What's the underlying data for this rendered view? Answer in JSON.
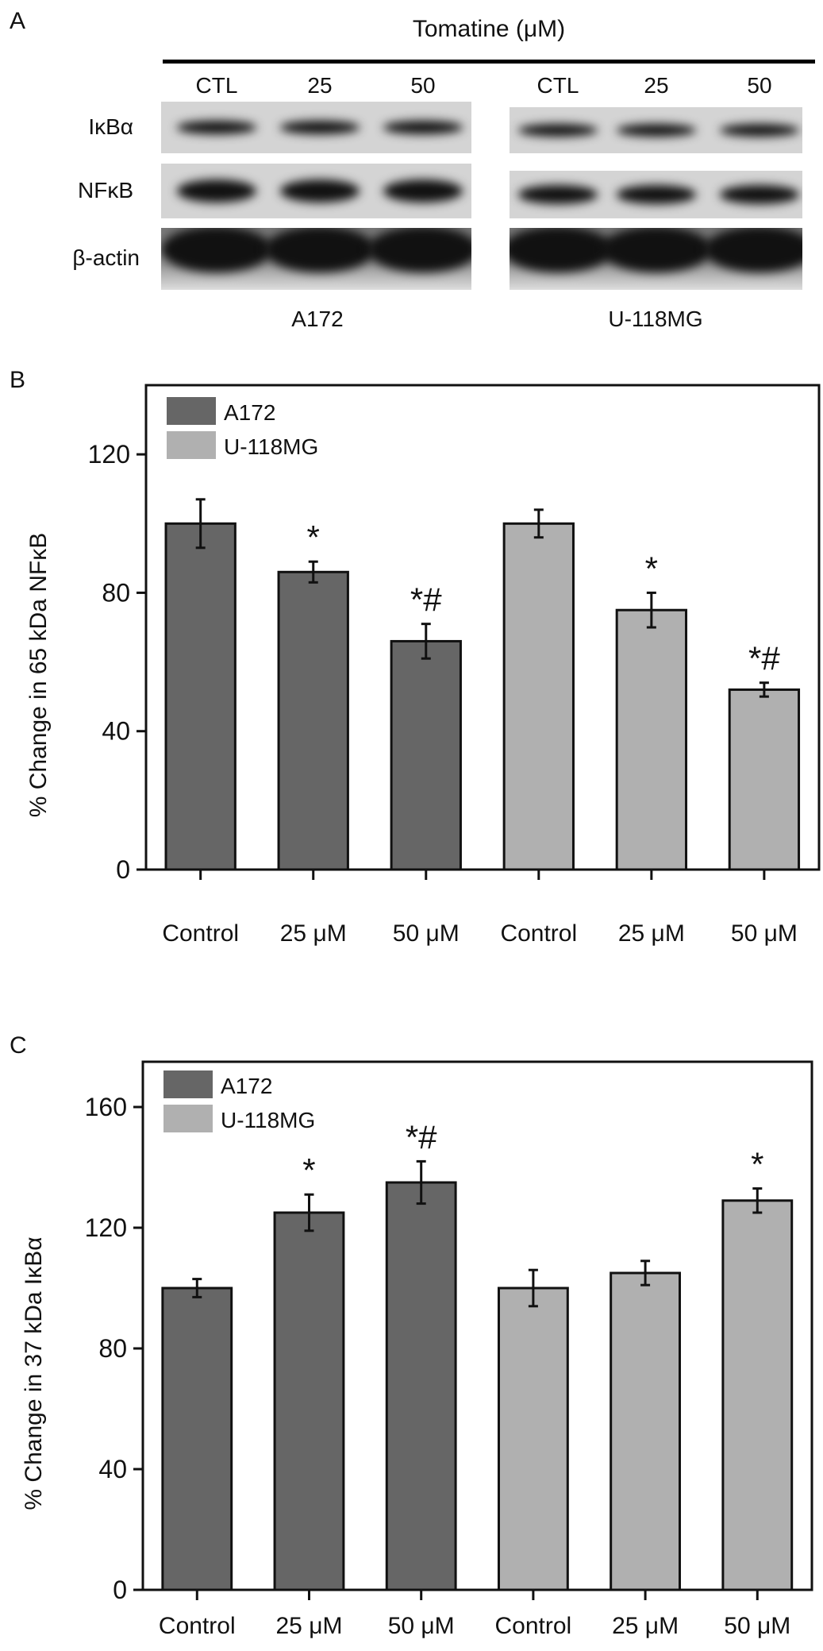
{
  "blot": {
    "panel_label": "A",
    "treatment_title": "Tomatine (μM)",
    "lanes_left": [
      "CTL",
      "25",
      "50"
    ],
    "lanes_right": [
      "CTL",
      "25",
      "50"
    ],
    "rows": [
      "IκBα",
      "NFκB",
      "β-actin"
    ],
    "cell_lines": [
      "A172",
      "U-118MG"
    ]
  },
  "chart_data": [
    {
      "panel_label": "B",
      "type": "bar",
      "title": "",
      "xlabel": "",
      "ylabel": "% Change in 65 kDa NFκB",
      "ylim": [
        0,
        140
      ],
      "yticks": [
        0,
        40,
        80,
        120
      ],
      "categories": [
        "Control",
        "25 μM",
        "50 μM",
        "Control",
        "25 μM",
        "50 μM"
      ],
      "series": [
        {
          "name": "A172",
          "color": "#666666",
          "values": [
            100,
            86,
            66,
            null,
            null,
            null
          ],
          "errors": [
            7,
            3,
            5,
            null,
            null,
            null
          ]
        },
        {
          "name": "U-118MG",
          "color": "#b0b0b0",
          "values": [
            null,
            null,
            null,
            100,
            75,
            52
          ],
          "errors": [
            null,
            null,
            null,
            4,
            5,
            2
          ]
        }
      ],
      "annotations": [
        "",
        "*",
        "*#",
        "",
        "*",
        "*#"
      ],
      "legend": "top-left",
      "grid": false
    },
    {
      "panel_label": "C",
      "type": "bar",
      "title": "",
      "xlabel": "",
      "ylabel": "% Change in 37 kDa IκBα",
      "ylim": [
        0,
        175
      ],
      "yticks": [
        0,
        40,
        80,
        120,
        160
      ],
      "categories": [
        "Control",
        "25 μM",
        "50 μM",
        "Control",
        "25 μM",
        "50 μM"
      ],
      "series": [
        {
          "name": "A172",
          "color": "#666666",
          "values": [
            100,
            125,
            135,
            null,
            null,
            null
          ],
          "errors": [
            3,
            6,
            7,
            null,
            null,
            null
          ]
        },
        {
          "name": "U-118MG",
          "color": "#b0b0b0",
          "values": [
            null,
            null,
            null,
            100,
            105,
            129
          ],
          "errors": [
            null,
            null,
            null,
            6,
            4,
            4
          ]
        }
      ],
      "annotations": [
        "",
        "*",
        "*#",
        "",
        "",
        "*"
      ],
      "legend": "top-left",
      "grid": false
    }
  ]
}
